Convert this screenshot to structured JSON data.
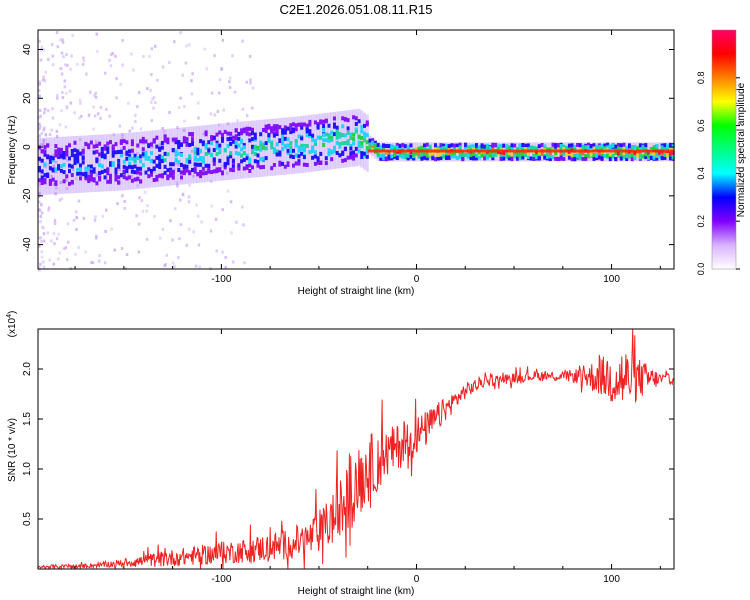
{
  "figure_title": "C2E1.2026.051.08.11.R15",
  "chart_data": [
    {
      "type": "heatmap",
      "title": "C2E1.2026.051.08.11.R15",
      "xlabel": "Height of straight line (km)",
      "ylabel": "Frequency (Hz)",
      "xlim": [
        -194,
        132
      ],
      "ylim": [
        -50,
        48
      ],
      "x_ticks": [
        -100,
        0,
        100
      ],
      "y_ticks": [
        -40,
        -20,
        0,
        20,
        40
      ],
      "x_tick_labels": [
        "-100",
        "0",
        "100"
      ],
      "y_tick_labels": [
        "-40",
        "-20",
        "0",
        "20",
        "40"
      ],
      "colorbar": {
        "label": "Normalized spectral amplitude",
        "range": [
          0,
          1
        ],
        "ticks": [
          0.0,
          0.2,
          0.4,
          0.6,
          0.8
        ],
        "tick_labels": [
          "0.0",
          "0.2",
          "0.4",
          "0.6",
          "0.8"
        ],
        "colors": [
          "#ffffff",
          "#d9b3ff",
          "#8000ff",
          "#0000ff",
          "#00ffff",
          "#00ff80",
          "#00ff00",
          "#ffff00",
          "#ff8000",
          "#ff0000",
          "#ff0066"
        ]
      },
      "ridge": {
        "description_points_x_km": [
          -194,
          -150,
          -100,
          -60,
          -40,
          -30,
          -25,
          -20,
          0,
          50,
          100,
          132
        ],
        "center_freq_hz": [
          -8,
          -6,
          -2,
          1,
          3,
          4,
          1,
          -2,
          -2,
          -2,
          -2,
          -2
        ],
        "peak_amplitude": [
          0.3,
          0.35,
          0.4,
          0.45,
          0.5,
          0.5,
          0.7,
          0.75,
          0.8,
          0.85,
          0.9,
          1.0
        ]
      }
    },
    {
      "type": "line",
      "xlabel": "Height of straight line (km)",
      "ylabel": "SNR (10 * v/v)",
      "scale_label": "(x10",
      "scale_exponent": "4",
      "xlim": [
        -194,
        132
      ],
      "ylim": [
        0,
        2.4
      ],
      "x_ticks": [
        -100,
        0,
        100
      ],
      "y_ticks": [
        0.5,
        1.0,
        1.5,
        2.0
      ],
      "x_tick_labels": [
        "-100",
        "0",
        "100"
      ],
      "y_tick_labels": [
        "0.5",
        "1.0",
        "1.5",
        "2.0"
      ],
      "series": [
        {
          "name": "SNR",
          "color": "#ee2222",
          "x": [
            -194,
            -170,
            -150,
            -130,
            -110,
            -90,
            -70,
            -55,
            -45,
            -35,
            -25,
            -15,
            -5,
            5,
            15,
            25,
            35,
            45,
            60,
            80,
            95,
            105,
            115,
            125,
            132
          ],
          "values": [
            0.02,
            0.03,
            0.06,
            0.1,
            0.14,
            0.18,
            0.23,
            0.3,
            0.45,
            0.7,
            1.0,
            1.15,
            1.28,
            1.4,
            1.6,
            1.78,
            1.88,
            1.9,
            1.93,
            1.93,
            1.92,
            1.9,
            1.9,
            1.9,
            1.9
          ],
          "noise_amplitude": [
            0.02,
            0.02,
            0.04,
            0.08,
            0.1,
            0.12,
            0.15,
            0.18,
            0.25,
            0.35,
            0.35,
            0.25,
            0.22,
            0.18,
            0.12,
            0.08,
            0.06,
            0.05,
            0.05,
            0.06,
            0.2,
            0.35,
            0.2,
            0.06,
            0.05
          ]
        }
      ]
    }
  ]
}
